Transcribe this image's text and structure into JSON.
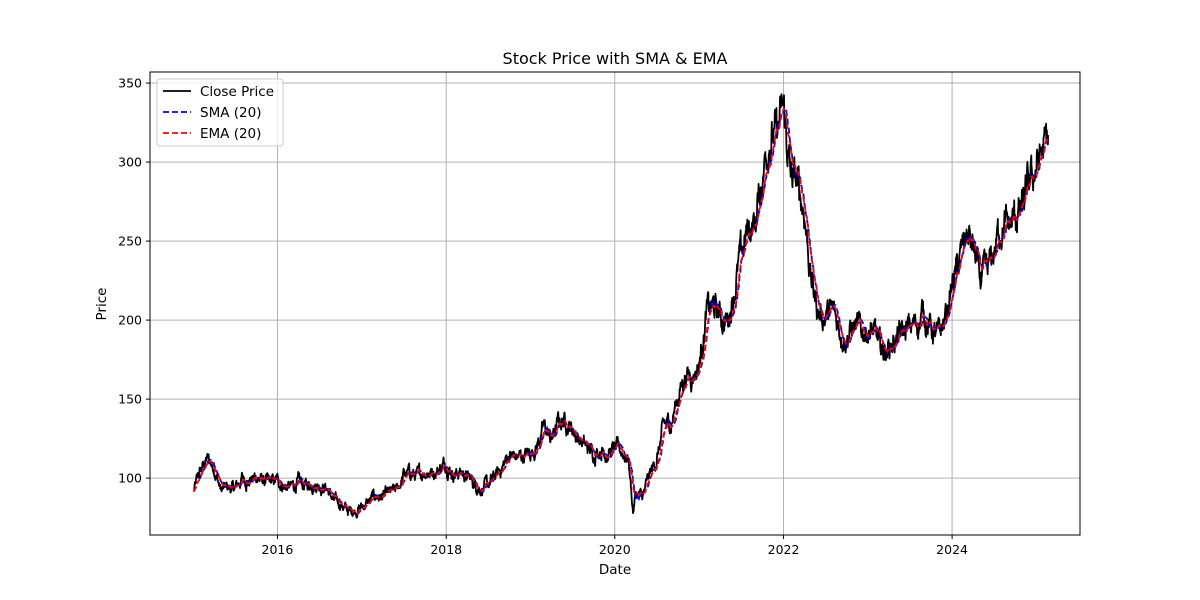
{
  "chart_data": {
    "type": "line",
    "title": "Stock Price with SMA & EMA",
    "xlabel": "Date",
    "ylabel": "Price",
    "xlim": [
      "2014-06-28",
      "2025-07-08"
    ],
    "ylim": [
      64,
      357
    ],
    "x_ticks": [
      {
        "date": "2016-01-01",
        "label": "2016"
      },
      {
        "date": "2018-01-01",
        "label": "2018"
      },
      {
        "date": "2020-01-01",
        "label": "2020"
      },
      {
        "date": "2022-01-01",
        "label": "2022"
      },
      {
        "date": "2024-01-01",
        "label": "2024"
      }
    ],
    "y_ticks": [
      100,
      150,
      200,
      250,
      300,
      350
    ],
    "grid": true,
    "legend_position": "upper-left",
    "series": [
      {
        "name": "Close Price",
        "color": "#000000",
        "dash": "solid"
      },
      {
        "name": "SMA (20)",
        "color": "#0000ff",
        "dash": "dashed"
      },
      {
        "name": "EMA (20)",
        "color": "#ff0000",
        "dash": "dashed"
      }
    ],
    "close_anchors": [
      [
        "2015-01-02",
        91
      ],
      [
        "2015-02-01",
        104
      ],
      [
        "2015-03-01",
        112
      ],
      [
        "2015-04-01",
        108
      ],
      [
        "2015-05-01",
        92
      ],
      [
        "2015-06-01",
        94
      ],
      [
        "2015-07-01",
        93
      ],
      [
        "2015-08-01",
        100
      ],
      [
        "2015-09-01",
        98
      ],
      [
        "2015-10-01",
        101
      ],
      [
        "2015-11-01",
        98
      ],
      [
        "2015-12-01",
        97
      ],
      [
        "2016-01-01",
        98
      ],
      [
        "2016-02-01",
        95
      ],
      [
        "2016-03-01",
        94
      ],
      [
        "2016-04-01",
        97
      ],
      [
        "2016-05-01",
        95
      ],
      [
        "2016-06-01",
        97
      ],
      [
        "2016-07-01",
        96
      ],
      [
        "2016-08-01",
        94
      ],
      [
        "2016-09-01",
        85
      ],
      [
        "2016-10-01",
        84
      ],
      [
        "2016-11-01",
        79
      ],
      [
        "2016-12-01",
        80
      ],
      [
        "2017-01-01",
        82
      ],
      [
        "2017-02-01",
        85
      ],
      [
        "2017-03-01",
        89
      ],
      [
        "2017-04-01",
        88
      ],
      [
        "2017-05-01",
        90
      ],
      [
        "2017-06-01",
        92
      ],
      [
        "2017-07-01",
        102
      ],
      [
        "2017-08-01",
        103
      ],
      [
        "2017-09-01",
        101
      ],
      [
        "2017-10-01",
        105
      ],
      [
        "2017-11-01",
        104
      ],
      [
        "2017-12-01",
        106
      ],
      [
        "2018-01-01",
        110
      ],
      [
        "2018-02-01",
        103
      ],
      [
        "2018-03-01",
        104
      ],
      [
        "2018-04-01",
        101
      ],
      [
        "2018-05-01",
        97
      ],
      [
        "2018-06-01",
        94
      ],
      [
        "2018-07-01",
        95
      ],
      [
        "2018-08-01",
        101
      ],
      [
        "2018-09-01",
        107
      ],
      [
        "2018-10-01",
        115
      ],
      [
        "2018-11-01",
        113
      ],
      [
        "2018-12-01",
        114
      ],
      [
        "2019-01-01",
        116
      ],
      [
        "2019-02-01",
        122
      ],
      [
        "2019-03-01",
        132
      ],
      [
        "2019-04-01",
        124
      ],
      [
        "2019-05-01",
        135
      ],
      [
        "2019-06-01",
        137
      ],
      [
        "2019-07-01",
        131
      ],
      [
        "2019-08-01",
        125
      ],
      [
        "2019-09-01",
        119
      ],
      [
        "2019-10-01",
        116
      ],
      [
        "2019-11-01",
        119
      ],
      [
        "2019-12-01",
        116
      ],
      [
        "2020-01-01",
        118
      ],
      [
        "2020-02-01",
        117
      ],
      [
        "2020-03-01",
        112
      ],
      [
        "2020-03-20",
        79
      ],
      [
        "2020-04-01",
        90
      ],
      [
        "2020-05-01",
        88
      ],
      [
        "2020-06-01",
        102
      ],
      [
        "2020-07-01",
        112
      ],
      [
        "2020-08-01",
        133
      ],
      [
        "2020-09-01",
        135
      ],
      [
        "2020-10-01",
        152
      ],
      [
        "2020-11-01",
        166
      ],
      [
        "2020-12-01",
        166
      ],
      [
        "2021-01-01",
        172
      ],
      [
        "2021-02-01",
        205
      ],
      [
        "2021-03-01",
        208
      ],
      [
        "2021-04-01",
        203
      ],
      [
        "2021-05-01",
        198
      ],
      [
        "2021-06-01",
        220
      ],
      [
        "2021-07-01",
        240
      ],
      [
        "2021-08-01",
        258
      ],
      [
        "2021-09-01",
        262
      ],
      [
        "2021-10-01",
        292
      ],
      [
        "2021-11-01",
        318
      ],
      [
        "2021-12-01",
        316
      ],
      [
        "2022-01-01",
        332
      ],
      [
        "2022-02-01",
        290
      ],
      [
        "2022-03-01",
        285
      ],
      [
        "2022-04-01",
        270
      ],
      [
        "2022-05-01",
        225
      ],
      [
        "2022-06-01",
        205
      ],
      [
        "2022-07-01",
        202
      ],
      [
        "2022-08-01",
        205
      ],
      [
        "2022-09-01",
        195
      ],
      [
        "2022-10-01",
        190
      ],
      [
        "2022-11-01",
        196
      ],
      [
        "2022-12-01",
        192
      ],
      [
        "2023-01-01",
        195
      ],
      [
        "2023-02-01",
        190
      ],
      [
        "2023-03-01",
        180
      ],
      [
        "2023-04-01",
        183
      ],
      [
        "2023-05-01",
        188
      ],
      [
        "2023-06-01",
        191
      ],
      [
        "2023-07-01",
        195
      ],
      [
        "2023-08-01",
        198
      ],
      [
        "2023-09-01",
        205
      ],
      [
        "2023-10-01",
        195
      ],
      [
        "2023-11-01",
        188
      ],
      [
        "2023-12-01",
        200
      ],
      [
        "2024-01-01",
        222
      ],
      [
        "2024-02-01",
        235
      ],
      [
        "2024-03-01",
        255
      ],
      [
        "2024-04-01",
        245
      ],
      [
        "2024-05-01",
        225
      ],
      [
        "2024-06-01",
        228
      ],
      [
        "2024-07-01",
        243
      ],
      [
        "2024-08-01",
        262
      ],
      [
        "2024-09-01",
        258
      ],
      [
        "2024-10-01",
        265
      ],
      [
        "2024-11-01",
        270
      ],
      [
        "2024-12-01",
        285
      ],
      [
        "2025-01-01",
        298
      ],
      [
        "2025-02-01",
        308
      ],
      [
        "2025-02-20",
        312
      ]
    ]
  }
}
